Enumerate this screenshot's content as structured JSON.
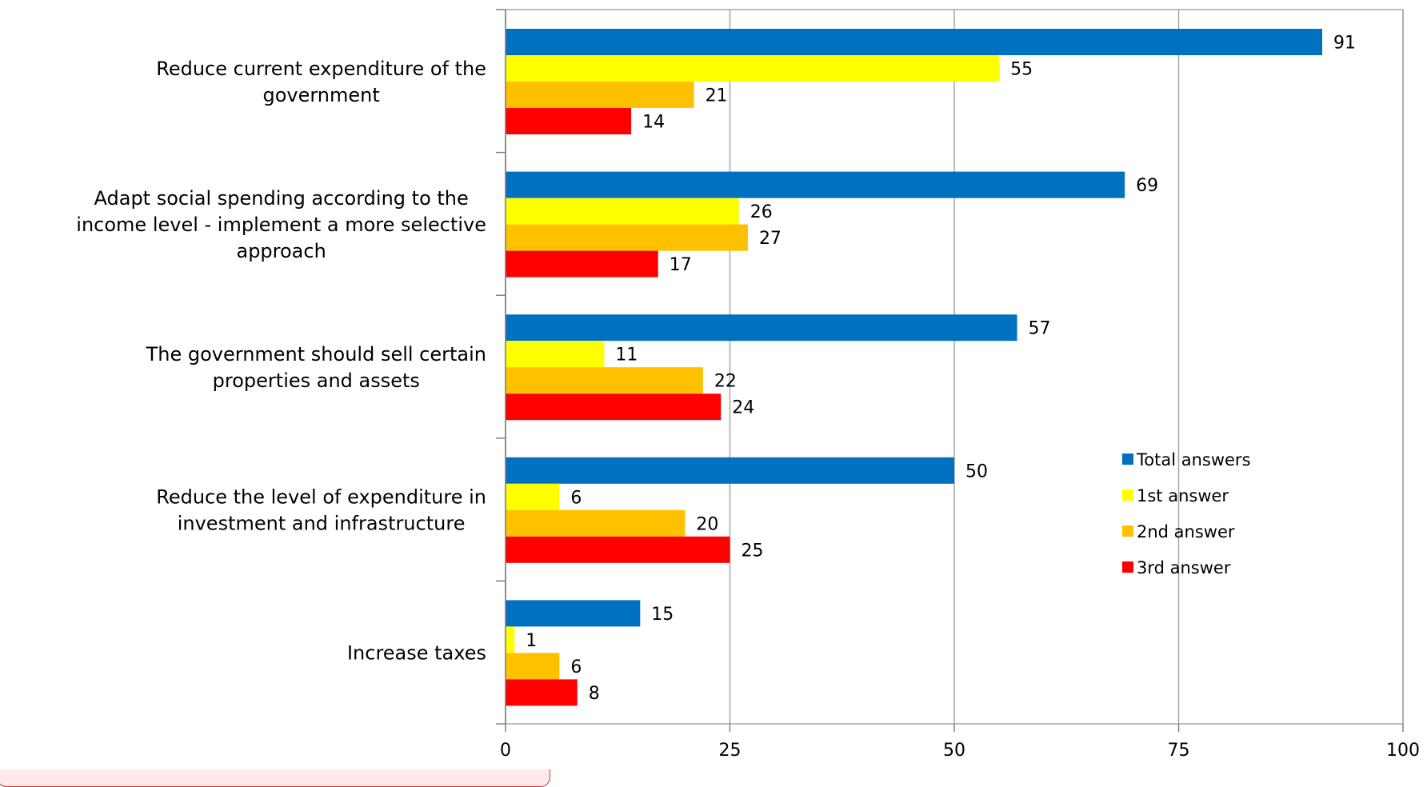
{
  "chart_data": {
    "type": "bar",
    "orientation": "horizontal",
    "title": "",
    "xlabel": "",
    "ylabel": "",
    "xlim": [
      0,
      100
    ],
    "x_ticks": [
      0,
      25,
      50,
      75,
      100
    ],
    "grid": true,
    "legend_position": "right",
    "categories": [
      [
        "Reduce current expenditure of the",
        "government"
      ],
      [
        "Adapt social spending according to the",
        "income level - implement a more selective",
        "approach"
      ],
      [
        "The government should sell certain",
        "properties and assets"
      ],
      [
        "Reduce the level of expenditure in",
        "investment and infrastructure"
      ],
      [
        "Increase taxes"
      ]
    ],
    "series": [
      {
        "name": "Total answers",
        "color": "#0070C0",
        "values": [
          91,
          69,
          57,
          50,
          15
        ]
      },
      {
        "name": "1st answer",
        "color": "#FFFF00",
        "values": [
          55,
          26,
          11,
          6,
          1
        ]
      },
      {
        "name": "2nd answer",
        "color": "#FFC000",
        "values": [
          21,
          27,
          22,
          20,
          6
        ]
      },
      {
        "name": "3rd answer",
        "color": "#FF0000",
        "values": [
          14,
          17,
          24,
          25,
          8
        ]
      }
    ]
  }
}
